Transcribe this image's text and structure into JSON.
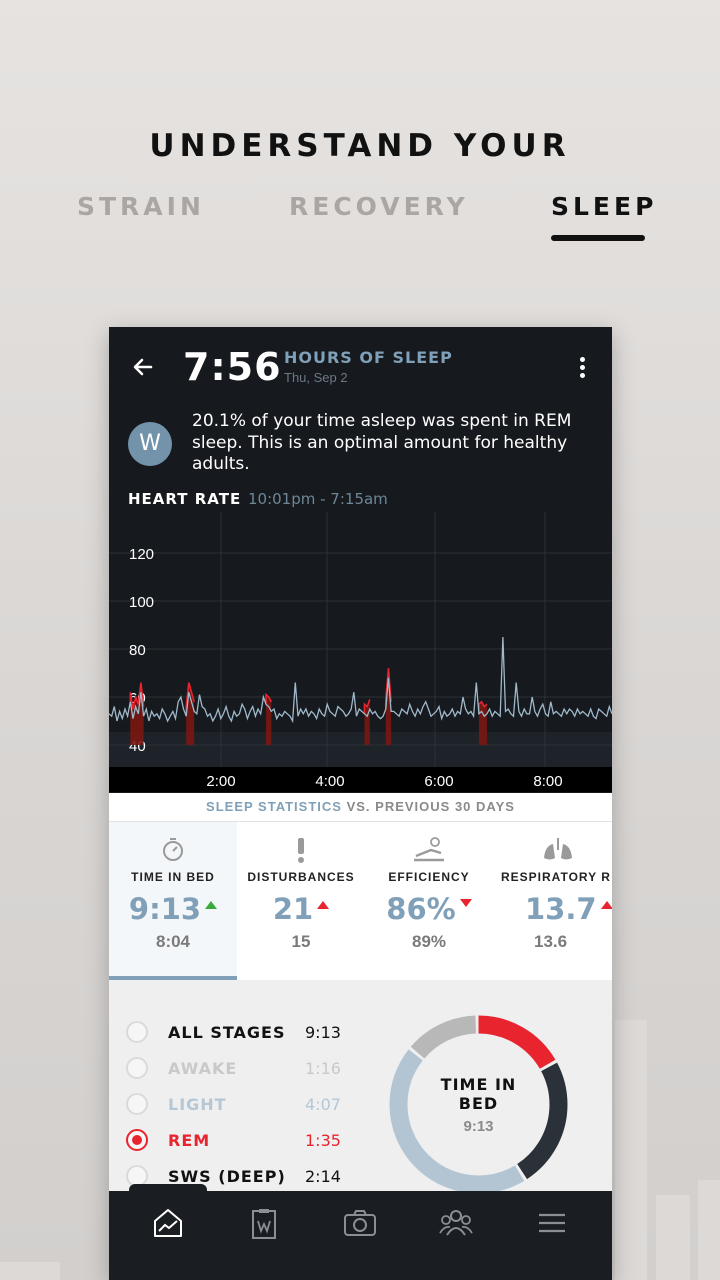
{
  "headline": "UNDERSTAND YOUR",
  "tabs": [
    {
      "label": "STRAIN",
      "active": false
    },
    {
      "label": "RECOVERY",
      "active": false
    },
    {
      "label": "SLEEP",
      "active": true
    }
  ],
  "header": {
    "time": "7:56",
    "label": "HOURS OF SLEEP",
    "date": "Thu, Sep 2"
  },
  "coach": {
    "avatar_letter": "W",
    "message": "20.1% of your time asleep was spent in REM sleep. This is an optimal amount for healthy adults."
  },
  "heart_rate": {
    "title": "HEART RATE",
    "range": "10:01pm - 7:15am"
  },
  "chart_data": {
    "type": "line",
    "y_ticks": [
      "120",
      "100",
      "80",
      "60",
      "40"
    ],
    "x_ticks": [
      "2:00",
      "4:00",
      "6:00",
      "8:00"
    ],
    "ylim": [
      40,
      130
    ],
    "series": [
      {
        "values": [
          53,
          52,
          56,
          50,
          54,
          51,
          55,
          52,
          58,
          51,
          56,
          53,
          62,
          52,
          55,
          50,
          54,
          52,
          53,
          51,
          55,
          53,
          50,
          52,
          54,
          51,
          58,
          60,
          55,
          52,
          62,
          58,
          54,
          53,
          61,
          56,
          55,
          52,
          53,
          50,
          52,
          55,
          51,
          53,
          56,
          52,
          50,
          54,
          52,
          53,
          57,
          55,
          51,
          54,
          56,
          52,
          55,
          53,
          60,
          57,
          56,
          54,
          55,
          51,
          53,
          52,
          54,
          53,
          52,
          50,
          66,
          52,
          55,
          53,
          55,
          52,
          54,
          53,
          51,
          55,
          53,
          52,
          57,
          54,
          53,
          52,
          56,
          55,
          54,
          52,
          53,
          55,
          62,
          52,
          55,
          54,
          53,
          52,
          55,
          53,
          54,
          52,
          51,
          52,
          55,
          68,
          54,
          54,
          53,
          52,
          55,
          54,
          53,
          57,
          54,
          52,
          55,
          53,
          56,
          58,
          55,
          52,
          53,
          54,
          56,
          51,
          54,
          52,
          53,
          55,
          52,
          54,
          53,
          60,
          55,
          53,
          54,
          52,
          66,
          53,
          54,
          52,
          53,
          55,
          52,
          54,
          53,
          52,
          85,
          54,
          55,
          53,
          52,
          66,
          54,
          52,
          55,
          53,
          53,
          60,
          54,
          52,
          55,
          57,
          53,
          52,
          58,
          53,
          54,
          53,
          52,
          55,
          53,
          55,
          54,
          52,
          55,
          53,
          54,
          53,
          52,
          55,
          52,
          51,
          55,
          54,
          53,
          52,
          56,
          53
        ]
      }
    ],
    "rem_segments": [
      [
        8,
        13
      ],
      [
        29,
        32
      ],
      [
        59,
        61
      ],
      [
        96,
        98
      ],
      [
        104,
        106
      ],
      [
        139,
        142
      ]
    ]
  },
  "stats_header": {
    "part1": "SLEEP STATISTICS",
    "part2": " VS. PREVIOUS 30 DAYS"
  },
  "stats": [
    {
      "name": "TIME IN BED",
      "value": "9:13",
      "prev": "8:04",
      "trend": "up",
      "trend_color": "#3aaa3a",
      "icon": "stopwatch-icon",
      "selected": true
    },
    {
      "name": "DISTURBANCES",
      "value": "21",
      "prev": "15",
      "trend": "up",
      "trend_color": "#e8242f",
      "icon": "exclamation-icon",
      "selected": false
    },
    {
      "name": "EFFICIENCY",
      "value": "86%",
      "prev": "89%",
      "trend": "down",
      "trend_color": "#e8242f",
      "icon": "sleeper-bed-icon",
      "selected": false
    },
    {
      "name": "RESPIRATORY R",
      "value": "13.7",
      "prev": "13.6",
      "trend": "up",
      "trend_color": "#e8242f",
      "icon": "lungs-icon",
      "selected": false
    }
  ],
  "stages": [
    {
      "label": "ALL STAGES",
      "time": "9:13",
      "color": "#111111",
      "time_color": "#111111",
      "selected": false
    },
    {
      "label": "AWAKE",
      "time": "1:16",
      "color": "#c9c9c9",
      "time_color": "#c9c9c9",
      "selected": false
    },
    {
      "label": "LIGHT",
      "time": "4:07",
      "color": "#b5c7d5",
      "time_color": "#b5c7d5",
      "selected": false
    },
    {
      "label": "REM",
      "time": "1:35",
      "color": "#e8242f",
      "time_color": "#e8242f",
      "selected": true
    },
    {
      "label": "SWS (DEEP)",
      "time": "2:14",
      "color": "#111111",
      "time_color": "#111111",
      "selected": false
    }
  ],
  "donut": {
    "line1": "TIME IN",
    "line2": "BED",
    "value": "9:13",
    "segments": [
      {
        "name": "REM",
        "fraction": 0.172,
        "color": "#e8242f"
      },
      {
        "name": "SWS (DEEP)",
        "fraction": 0.242,
        "color": "#2a3138"
      },
      {
        "name": "LIGHT",
        "fraction": 0.448,
        "color": "#b3c5d3"
      },
      {
        "name": "AWAKE",
        "fraction": 0.138,
        "color": "#b8b8b8"
      }
    ]
  },
  "nav": [
    "overview-icon",
    "journal-icon",
    "camera-icon",
    "community-icon",
    "menu-icon"
  ],
  "colors": {
    "accent": "#7fa0b8",
    "rem": "#e8242f",
    "dark": "#16191d"
  }
}
